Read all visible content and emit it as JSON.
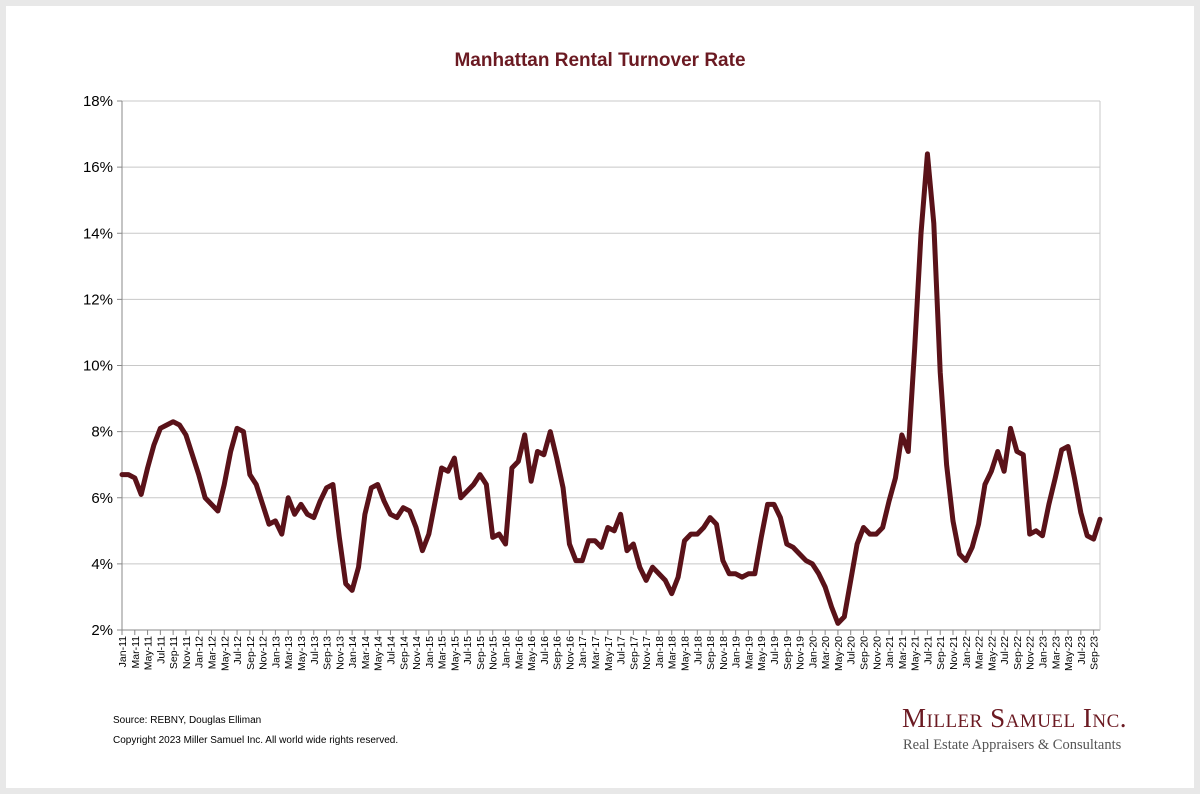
{
  "chart_data": {
    "type": "line",
    "title": "Manhattan Rental Turnover Rate",
    "xlabel": "",
    "ylabel": "",
    "ylim": [
      2,
      18
    ],
    "y_ticks": [
      "2%",
      "4%",
      "6%",
      "8%",
      "10%",
      "12%",
      "14%",
      "16%",
      "18%"
    ],
    "grid": true,
    "line_color": "#5a1219",
    "x_tick_labels": [
      "Jan-11",
      "Mar-11",
      "May-11",
      "Jul-11",
      "Sep-11",
      "Nov-11",
      "Jan-12",
      "Mar-12",
      "May-12",
      "Jul-12",
      "Sep-12",
      "Nov-12",
      "Jan-13",
      "Mar-13",
      "May-13",
      "Jul-13",
      "Sep-13",
      "Nov-13",
      "Jan-14",
      "Mar-14",
      "May-14",
      "Jul-14",
      "Sep-14",
      "Nov-14",
      "Jan-15",
      "Mar-15",
      "May-15",
      "Jul-15",
      "Sep-15",
      "Nov-15",
      "Jan-16",
      "Mar-16",
      "May-16",
      "Jul-16",
      "Sep-16",
      "Nov-16",
      "Jan-17",
      "Mar-17",
      "May-17",
      "Jul-17",
      "Sep-17",
      "Nov-17",
      "Jan-18",
      "Mar-18",
      "May-18",
      "Jul-18",
      "Sep-18",
      "Nov-18",
      "Jan-19",
      "Mar-19",
      "May-19",
      "Jul-19",
      "Sep-19",
      "Nov-19",
      "Jan-20",
      "Mar-20",
      "May-20",
      "Jul-20",
      "Sep-20",
      "Nov-20",
      "Jan-21",
      "Mar-21",
      "May-21",
      "Jul-21",
      "Sep-21",
      "Nov-21",
      "Jan-22",
      "Mar-22",
      "May-22",
      "Jul-22",
      "Sep-22",
      "Nov-22",
      "Jan-23",
      "Mar-23",
      "May-23",
      "Jul-23",
      "Sep-23"
    ],
    "series": [
      {
        "values": [
          6.7,
          6.7,
          6.6,
          6.1,
          6.9,
          7.6,
          8.1,
          8.2,
          8.3,
          8.2,
          7.9,
          7.3,
          6.7,
          6.0,
          5.8,
          5.6,
          6.4,
          7.4,
          8.1,
          8.0,
          6.7,
          6.4,
          5.8,
          5.2,
          5.3,
          4.9,
          6.0,
          5.5,
          5.8,
          5.5,
          5.4,
          5.9,
          6.3,
          6.4,
          4.8,
          3.4,
          3.2,
          3.9,
          5.5,
          6.3,
          6.4,
          5.9,
          5.5,
          5.4,
          5.7,
          5.6,
          5.1,
          4.4,
          4.9,
          5.9,
          6.9,
          6.8,
          7.2,
          6.0,
          6.2,
          6.4,
          6.7,
          6.4,
          4.8,
          4.9,
          4.6,
          6.9,
          7.1,
          7.9,
          6.5,
          7.4,
          7.3,
          8.0,
          7.2,
          6.3,
          4.6,
          4.1,
          4.1,
          4.7,
          4.7,
          4.5,
          5.1,
          5.0,
          5.5,
          4.4,
          4.6,
          3.9,
          3.5,
          3.9,
          3.7,
          3.5,
          3.1,
          3.6,
          4.7,
          4.9,
          4.9,
          5.1,
          5.4,
          5.2,
          4.1,
          3.7,
          3.7,
          3.6,
          3.7,
          3.7,
          4.8,
          5.8,
          5.8,
          5.4,
          4.6,
          4.5,
          4.3,
          4.1,
          4.0,
          3.7,
          3.3,
          2.7,
          2.2,
          2.4,
          3.5,
          4.6,
          5.1,
          4.9,
          4.9,
          5.1,
          5.9,
          6.6,
          7.9,
          7.4,
          10.5,
          14.0,
          16.4,
          14.3,
          9.8,
          7.0,
          5.3,
          4.3,
          4.1,
          4.5,
          5.2,
          6.4,
          6.8,
          7.4,
          6.8,
          8.1,
          7.4,
          7.3,
          4.9,
          5.0,
          4.85,
          5.8,
          6.6,
          7.45,
          7.55,
          6.6,
          5.55,
          4.85,
          4.75,
          5.35
        ]
      }
    ]
  },
  "footer": {
    "source": "Source: REBNY, Douglas Elliman",
    "copyright": "Copyright 2023 Miller Samuel Inc.  All world wide rights reserved."
  },
  "brand": {
    "name": "Miller Samuel Inc.",
    "tagline": "Real Estate Appraisers & Consultants"
  }
}
